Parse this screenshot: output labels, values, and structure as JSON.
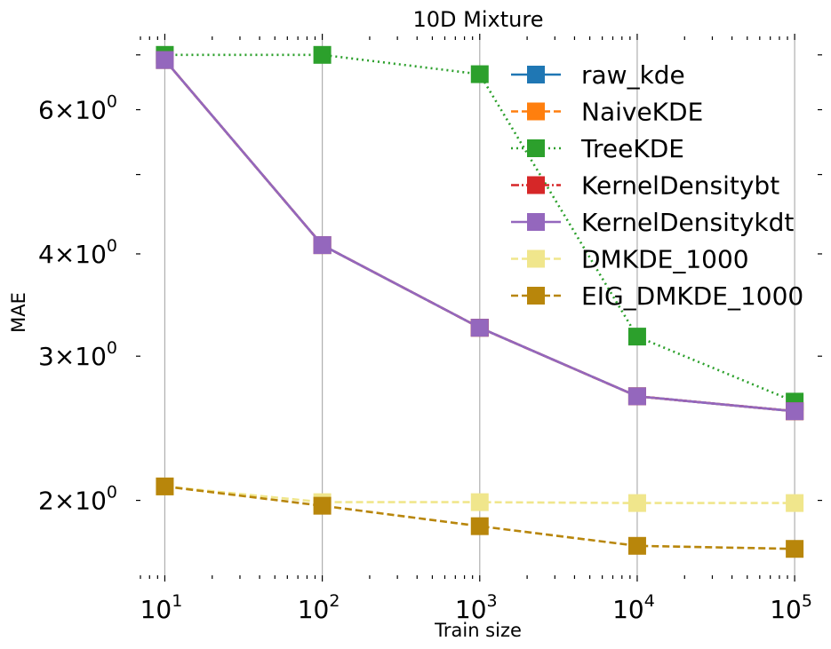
{
  "chart_data": {
    "type": "line",
    "title": "10D Mixture",
    "xlabel": "Train size",
    "ylabel": "MAE",
    "xscale": "log",
    "yscale": "log",
    "xlim": [
      7,
      140000
    ],
    "ylim": [
      1.62,
      7.3
    ],
    "grid": "x-major",
    "x": [
      10,
      100,
      1000,
      10000,
      100000
    ],
    "x_tick_labels": [
      {
        "value": 10,
        "base": "10",
        "exp": "1"
      },
      {
        "value": 100,
        "base": "10",
        "exp": "2"
      },
      {
        "value": 1000,
        "base": "10",
        "exp": "3"
      },
      {
        "value": 10000,
        "base": "10",
        "exp": "4"
      },
      {
        "value": 100000,
        "base": "10",
        "exp": "5"
      }
    ],
    "y_tick_labels": [
      {
        "value": 2,
        "mant": "2",
        "base": "10",
        "exp": "0"
      },
      {
        "value": 3,
        "mant": "3",
        "base": "10",
        "exp": "0"
      },
      {
        "value": 4,
        "mant": "4",
        "base": "10",
        "exp": "0"
      },
      {
        "value": 6,
        "mant": "6",
        "base": "10",
        "exp": "0"
      }
    ],
    "legend_position": "top-right",
    "series": [
      {
        "name": "raw_kde",
        "color": "#1f77b4",
        "dash": "solid",
        "values": [
          6.9,
          4.1,
          3.25,
          2.68,
          2.57
        ]
      },
      {
        "name": "NaiveKDE",
        "color": "#ff7f0e",
        "dash": "dashed",
        "values": [
          6.9,
          4.1,
          3.25,
          2.68,
          2.57
        ]
      },
      {
        "name": "TreeKDE",
        "color": "#2ca02c",
        "dash": "dotted",
        "values": [
          7.0,
          7.0,
          6.63,
          3.17,
          2.64
        ]
      },
      {
        "name": "KernelDensitybt",
        "color": "#d62728",
        "dash": "dashdot",
        "values": [
          6.9,
          4.1,
          3.25,
          2.68,
          2.57
        ]
      },
      {
        "name": "KernelDensitykdt",
        "color": "#9467bd",
        "dash": "solid",
        "values": [
          6.9,
          4.1,
          3.25,
          2.68,
          2.57
        ]
      },
      {
        "name": "DMKDE_1000",
        "color": "#f0e68c",
        "dash": "dashed",
        "values": [
          2.08,
          1.99,
          1.99,
          1.985,
          1.985
        ]
      },
      {
        "name": "EIG_DMKDE_1000",
        "color": "#b8860b",
        "dash": "dashed",
        "values": [
          2.08,
          1.97,
          1.86,
          1.76,
          1.745
        ]
      }
    ]
  }
}
